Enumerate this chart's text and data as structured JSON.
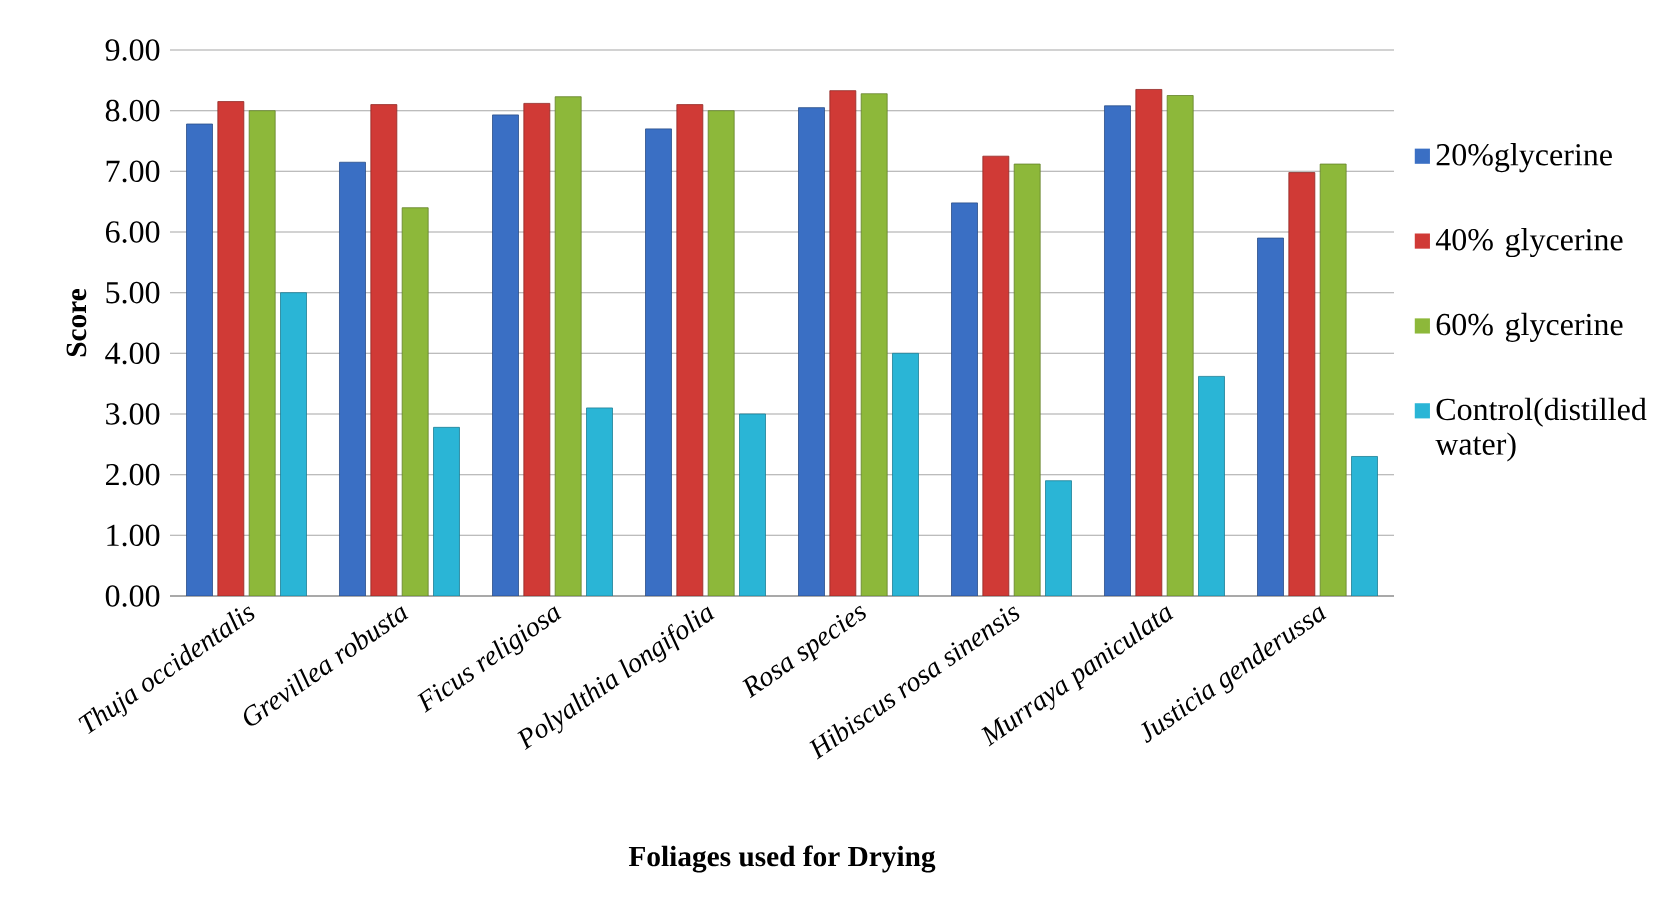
{
  "chart_data": {
    "type": "bar",
    "xlabel": "Foliages used for Drying",
    "ylabel": "Score",
    "categories": [
      "Thuja occidentalis",
      "Grevillea robusta",
      "Ficus religiosa",
      "Polyalthia longifolia",
      "Rosa species",
      "Hibiscus rosa sinensis",
      "Murraya paniculata",
      "Justicia genderussa"
    ],
    "series": [
      {
        "name": "20%glycerine",
        "color": "#3a6fc4",
        "values": [
          7.78,
          7.15,
          7.93,
          7.7,
          8.05,
          6.48,
          8.08,
          5.9
        ]
      },
      {
        "name": "40% glycerine",
        "color": "#d03a36",
        "values": [
          8.15,
          8.1,
          8.12,
          8.1,
          8.33,
          7.25,
          8.35,
          6.98
        ]
      },
      {
        "name": "60% glycerine",
        "color": "#8db83a",
        "values": [
          8.0,
          6.4,
          8.23,
          8.0,
          8.28,
          7.12,
          8.25,
          7.12
        ]
      },
      {
        "name": "Control(distilled water)",
        "color": "#2ab5d6",
        "values": [
          5.0,
          2.78,
          3.1,
          3.0,
          4.0,
          1.9,
          3.62,
          2.3
        ]
      }
    ],
    "ylim": [
      0,
      9
    ],
    "yticks": [
      {
        "value": 0,
        "label": "0.00"
      },
      {
        "value": 1,
        "label": "1.00"
      },
      {
        "value": 2,
        "label": "2.00"
      },
      {
        "value": 3,
        "label": "3.00"
      },
      {
        "value": 4,
        "label": "4.00"
      },
      {
        "value": 5,
        "label": "5.00"
      },
      {
        "value": 6,
        "label": "6.00"
      },
      {
        "value": 7,
        "label": "7.00"
      },
      {
        "value": 8,
        "label": "8.00"
      },
      {
        "value": 9,
        "label": "9.00"
      }
    ],
    "grid": "y",
    "legend": "right"
  }
}
